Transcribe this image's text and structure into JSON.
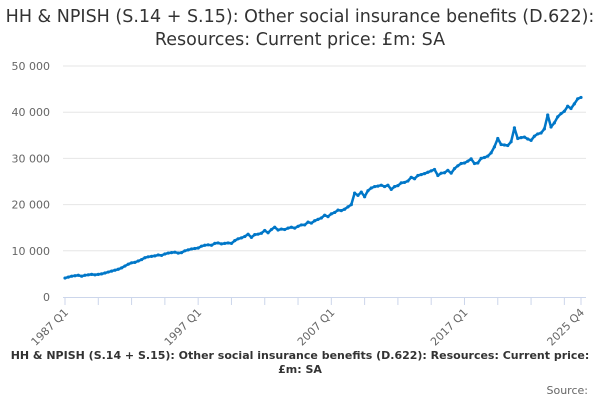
{
  "chart_data": {
    "type": "line",
    "title": "HH & NPISH (S.14 + S.15): Other social insurance benefits (D.622): Resources: Current price: £m: SA",
    "x_start": "1987 Q1",
    "x_end": "2025 Q4",
    "frequency": "quarterly",
    "x_tick_labels": [
      "1987 Q1",
      "1997 Q1",
      "2007 Q1",
      "2017 Q1",
      "2025 Q4"
    ],
    "y_ticks": [
      0,
      10000,
      20000,
      30000,
      40000,
      50000
    ],
    "y_tick_labels": [
      "0",
      "10 000",
      "20 000",
      "30 000",
      "40 000",
      "50 000"
    ],
    "ylim": [
      0,
      50000
    ],
    "grid": true,
    "legend": "none",
    "line_color": "#0077c8",
    "series": [
      {
        "values": [
          4100,
          4300,
          4500,
          4600,
          4700,
          4500,
          4700,
          4800,
          4900,
          4800,
          4900,
          5000,
          5200,
          5400,
          5600,
          5800,
          6000,
          6300,
          6700,
          7100,
          7400,
          7500,
          7800,
          8100,
          8500,
          8700,
          8800,
          8900,
          9100,
          9000,
          9300,
          9500,
          9600,
          9700,
          9500,
          9600,
          10000,
          10200,
          10400,
          10500,
          10600,
          11000,
          11200,
          11300,
          11200,
          11600,
          11700,
          11500,
          11600,
          11700,
          11600,
          12200,
          12600,
          12800,
          13100,
          13600,
          12900,
          13500,
          13600,
          13800,
          14400,
          13900,
          14600,
          15100,
          14500,
          14700,
          14600,
          14900,
          15100,
          14900,
          15300,
          15600,
          15600,
          16200,
          16000,
          16500,
          16800,
          17100,
          17700,
          17400,
          18000,
          18300,
          18800,
          18700,
          19000,
          19500,
          20000,
          22500,
          22000,
          22700,
          21700,
          23000,
          23600,
          23900,
          24000,
          24200,
          23900,
          24200,
          23300,
          23900,
          24100,
          24700,
          24800,
          25100,
          25900,
          25600,
          26300,
          26500,
          26700,
          27000,
          27300,
          27600,
          26300,
          26800,
          26900,
          27400,
          26800,
          27800,
          28400,
          28900,
          29000,
          29400,
          29900,
          28900,
          29000,
          30000,
          30200,
          30500,
          31200,
          32500,
          34300,
          33000,
          32900,
          32800,
          33600,
          36600,
          34300,
          34500,
          34600,
          34200,
          33900,
          34800,
          35300,
          35500,
          36400,
          39400,
          36800,
          37700,
          39000,
          39700,
          40200,
          41300,
          40800,
          41800,
          42900,
          43200
        ]
      }
    ]
  },
  "footer": "HH & NPISH (S.14 + S.15): Other social insurance benefits (D.622): Resources: Current price: £m: SA",
  "source_label": "Source:"
}
